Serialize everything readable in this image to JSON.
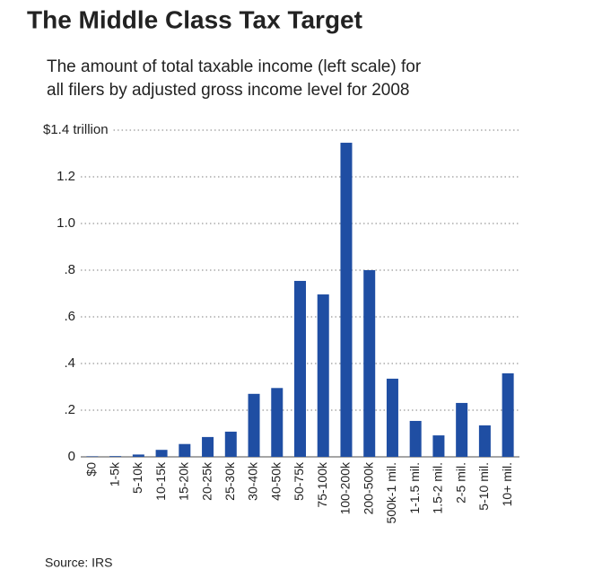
{
  "chart_data": {
    "type": "bar",
    "title": "The Middle Class Tax Target",
    "subtitle": [
      "The amount of total taxable income (left scale) for",
      "all filers by adjusted gross income level for 2008"
    ],
    "source": "Source: IRS",
    "categories": [
      "$0",
      "1-5k",
      "5-10k",
      "10-15k",
      "15-20k",
      "20-25k",
      "25-30k",
      "30-40k",
      "40-50k",
      "50-75k",
      "75-100k",
      "100-200k",
      "200-500k",
      "500k-1 mil.",
      "1-1.5 mil.",
      "1.5-2 mil.",
      "2-5 mil.",
      "5-10 mil.",
      "10+ mil."
    ],
    "values": [
      0.002,
      0.003,
      0.01,
      0.03,
      0.055,
      0.085,
      0.108,
      0.27,
      0.295,
      0.754,
      0.696,
      1.346,
      0.8,
      0.335,
      0.154,
      0.092,
      0.231,
      0.135,
      0.358
    ],
    "color": "#1f4ea3",
    "ylim": [
      0,
      1.4
    ],
    "yticks": [
      0,
      {
        "value": 0.2,
        "label": ".2"
      },
      {
        "value": 0.4,
        "label": ".4"
      },
      {
        "value": 0.6,
        "label": ".6"
      },
      {
        "value": 0.8,
        "label": ".8"
      },
      {
        "value": 1.0,
        "label": "1.0"
      },
      1.2,
      {
        "value": 1.4,
        "label": "$1.4 trillion"
      }
    ],
    "grid": true
  }
}
